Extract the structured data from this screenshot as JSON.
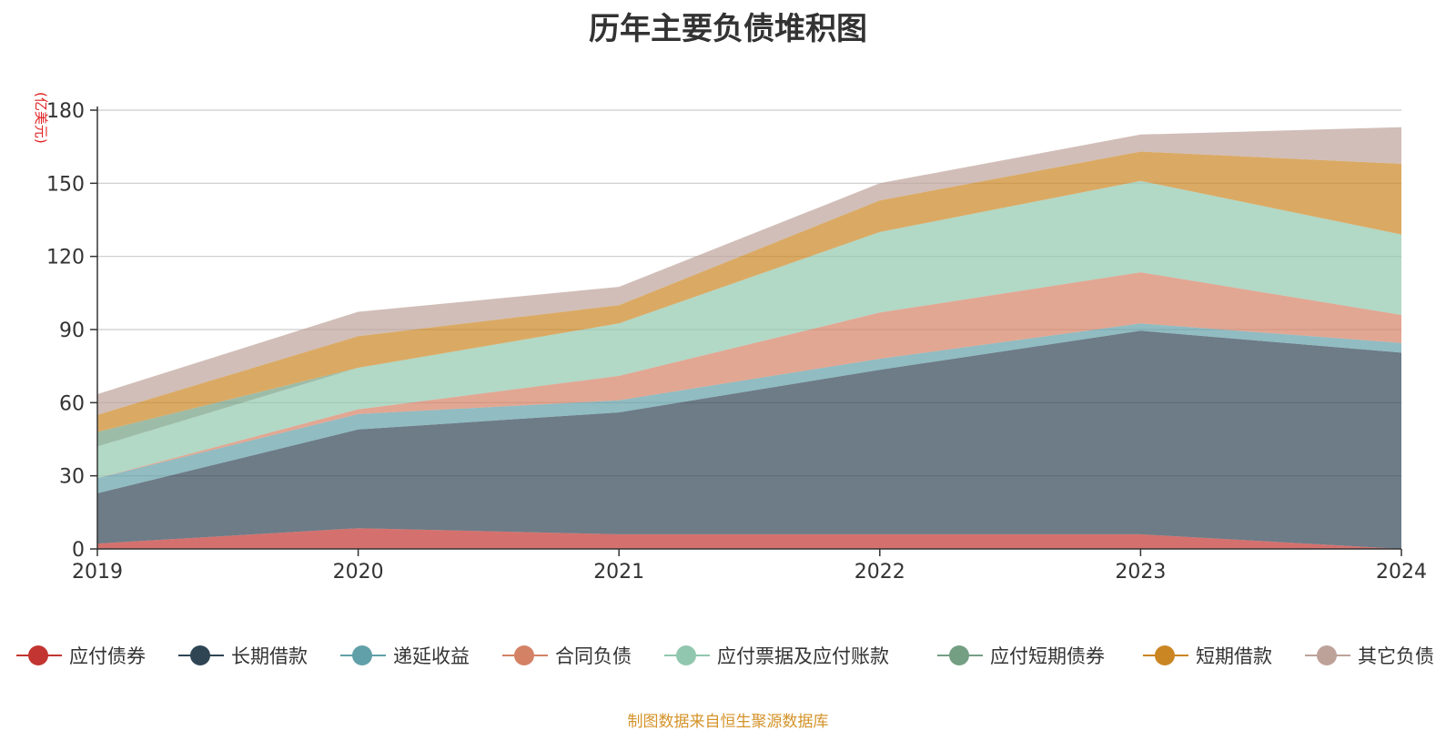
{
  "chart_data": {
    "type": "area",
    "title": "历年主要负债堆积图",
    "ylabel": "(亿美元)",
    "xlabel": "",
    "x": [
      "2019",
      "2020",
      "2021",
      "2022",
      "2023",
      "2024"
    ],
    "ylim": [
      0,
      180
    ],
    "yticks": [
      "0",
      "30",
      "60",
      "90",
      "120",
      "150",
      "180"
    ],
    "stacked": true,
    "grid": true,
    "legend_position": "bottom",
    "series": [
      {
        "name": "应付债券",
        "color": "#c23531",
        "values": [
          2.2,
          8.5,
          6.0,
          6.0,
          6.0,
          0.0
        ]
      },
      {
        "name": "长期借款",
        "color": "#2f4554",
        "values": [
          20.6,
          40.5,
          50.0,
          67.5,
          83.5,
          80.5
        ]
      },
      {
        "name": "递延收益",
        "color": "#61a0a8",
        "values": [
          6.2,
          6.3,
          5.0,
          4.5,
          3.0,
          4.0
        ]
      },
      {
        "name": "合同负债",
        "color": "#d48265",
        "values": [
          0.0,
          2.0,
          10.0,
          19.0,
          21.0,
          11.5
        ]
      },
      {
        "name": "应付票据及应付账款",
        "color": "#91c7ae",
        "values": [
          13.0,
          17.0,
          21.5,
          33.0,
          37.5,
          33.0
        ]
      },
      {
        "name": "应付短期债券",
        "color": "#749f83",
        "values": [
          6.0,
          0.0,
          0.0,
          0.0,
          0.0,
          0.0
        ]
      },
      {
        "name": "短期借款",
        "color": "#ca8622",
        "values": [
          7.0,
          13.0,
          7.5,
          13.0,
          12.0,
          29.0
        ]
      },
      {
        "name": "其它负债",
        "color": "#bda29a",
        "values": [
          8.5,
          10.0,
          7.5,
          7.0,
          7.0,
          15.0
        ]
      }
    ]
  },
  "source_note": "制图数据来自恒生聚源数据库"
}
